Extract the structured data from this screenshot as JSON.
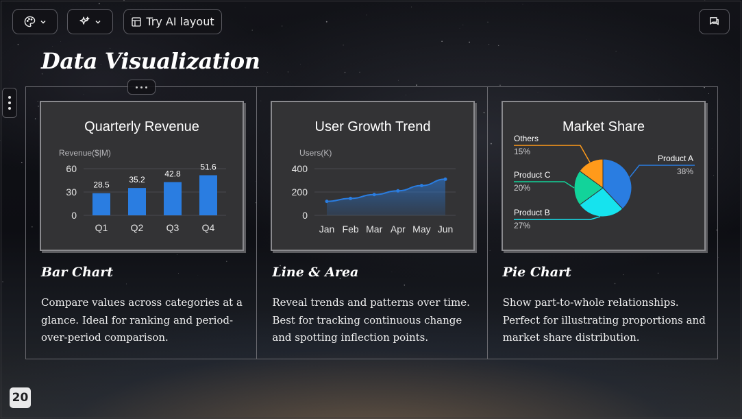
{
  "toolbar": {
    "theme_icon": "palette-icon",
    "ai_icon": "sparkle-icon",
    "try_ai_label": "Try AI layout",
    "comment_icon": "comment-icon"
  },
  "slide": {
    "title": "Data Visualization",
    "page_number": "20",
    "cards": [
      {
        "heading": "Bar Chart",
        "description": "Compare values across categories at a glance. Ideal for ranking and period-over-period comparison."
      },
      {
        "heading": "Line & Area",
        "description": "Reveal trends and patterns over time. Best for tracking continuous change and spotting inflection points."
      },
      {
        "heading": "Pie Chart",
        "description": "Show part-to-whole relationships. Perfect for illustrating proportions and market share distribution."
      }
    ]
  },
  "chart_data": [
    {
      "type": "bar",
      "title": "Quarterly Revenue",
      "ylabel": "Revenue($|M)",
      "categories": [
        "Q1",
        "Q2",
        "Q3",
        "Q4"
      ],
      "values": [
        28.5,
        35.2,
        42.8,
        51.6
      ],
      "ylim": [
        0,
        60
      ],
      "yticks": [
        0,
        30,
        60
      ],
      "color": "#2a7de1",
      "grid": true
    },
    {
      "type": "area",
      "title": "User Growth Trend",
      "ylabel": "Users(K)",
      "categories": [
        "Jan",
        "Feb",
        "Mar",
        "Apr",
        "May",
        "Jun"
      ],
      "values": [
        120,
        145,
        178,
        210,
        255,
        310
      ],
      "ylim": [
        0,
        400
      ],
      "yticks": [
        0,
        200,
        400
      ],
      "color": "#2a7de1",
      "grid": true
    },
    {
      "type": "pie",
      "title": "Market Share",
      "slices": [
        {
          "label": "Product A",
          "pct": "38%",
          "value": 38,
          "color": "#2a7de1"
        },
        {
          "label": "Product B",
          "pct": "27%",
          "value": 27,
          "color": "#16e3ee"
        },
        {
          "label": "Product C",
          "pct": "20%",
          "value": 20,
          "color": "#12d39a"
        },
        {
          "label": "Others",
          "pct": "15%",
          "value": 15,
          "color": "#ff9a1a"
        }
      ]
    }
  ]
}
